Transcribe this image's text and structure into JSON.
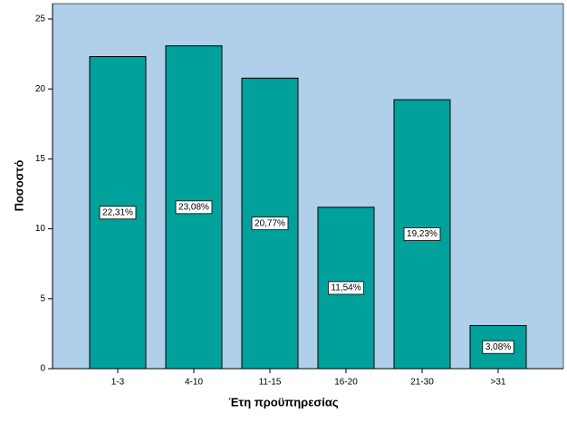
{
  "chart_data": {
    "type": "bar",
    "x_label": "Έτη προϋπηρεσίας",
    "y_label": "Ποσοστό",
    "categories": [
      "1-3",
      "4-10",
      "11-15",
      "16-20",
      "21-30",
      ">31"
    ],
    "values": [
      22.31,
      23.08,
      20.77,
      11.54,
      19.23,
      3.08
    ],
    "value_labels": [
      "22,31%",
      "23,08%",
      "20,77%",
      "11,54%",
      "19,23%",
      "3,08%"
    ],
    "color": "#00a19a",
    "background": "#afcfeb",
    "ylim": [
      0,
      26.1
    ],
    "yticks": [
      0,
      5,
      10,
      15,
      20,
      25
    ]
  }
}
